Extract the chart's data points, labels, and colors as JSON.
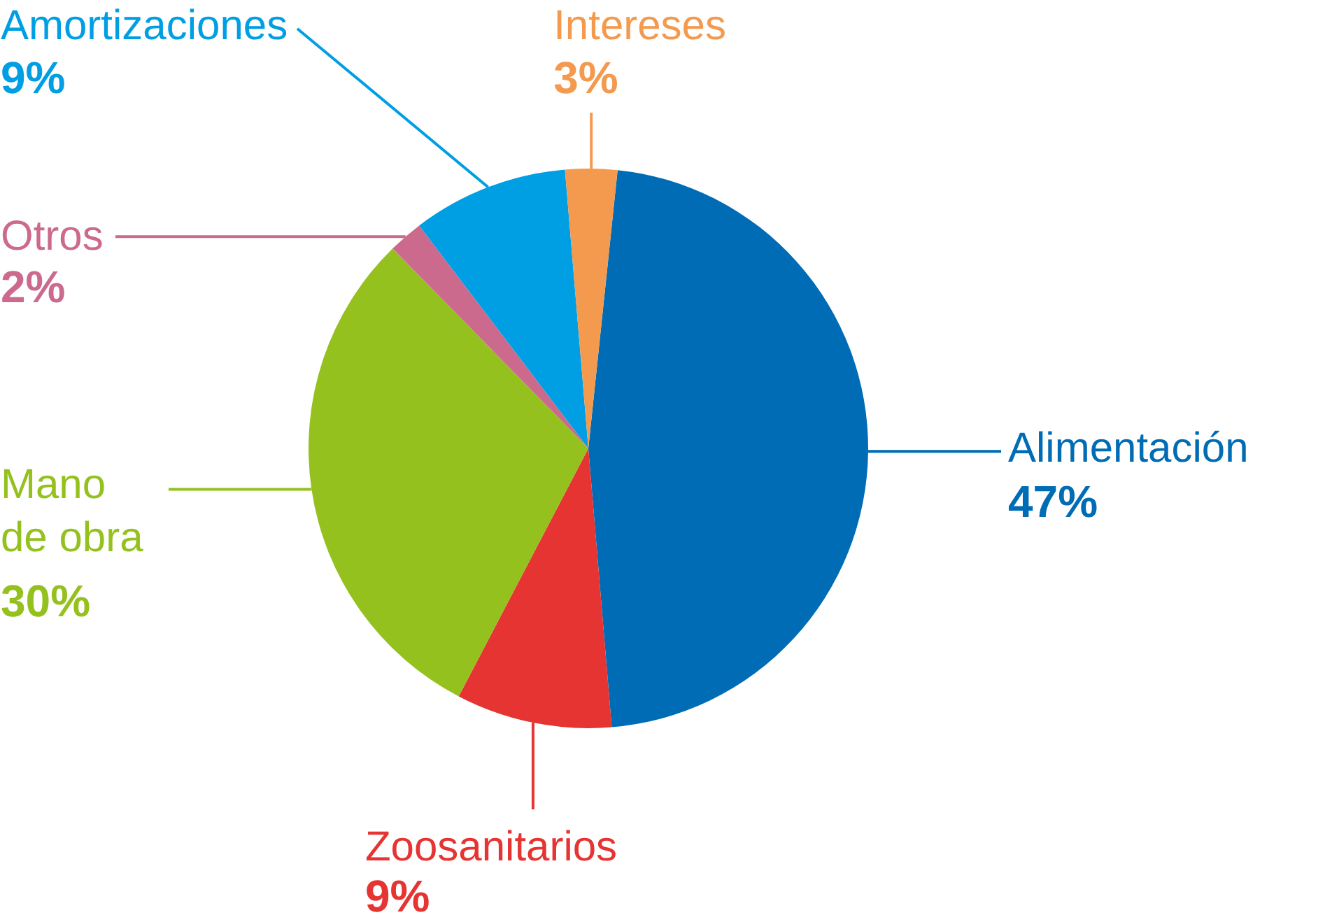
{
  "chart_data": {
    "type": "pie",
    "categories": [
      "Alimentación",
      "Zoosanitarios",
      "Mano de obra",
      "Otros",
      "Amortizaciones",
      "Intereses"
    ],
    "values": [
      47,
      9,
      30,
      2,
      9,
      3
    ],
    "colors": [
      "#006cb5",
      "#e53431",
      "#95c11f",
      "#cc6a8e",
      "#009fe3",
      "#f39a4f"
    ],
    "value_labels": [
      "47%",
      "9%",
      "30%",
      "2%",
      "9%",
      "3%"
    ]
  }
}
